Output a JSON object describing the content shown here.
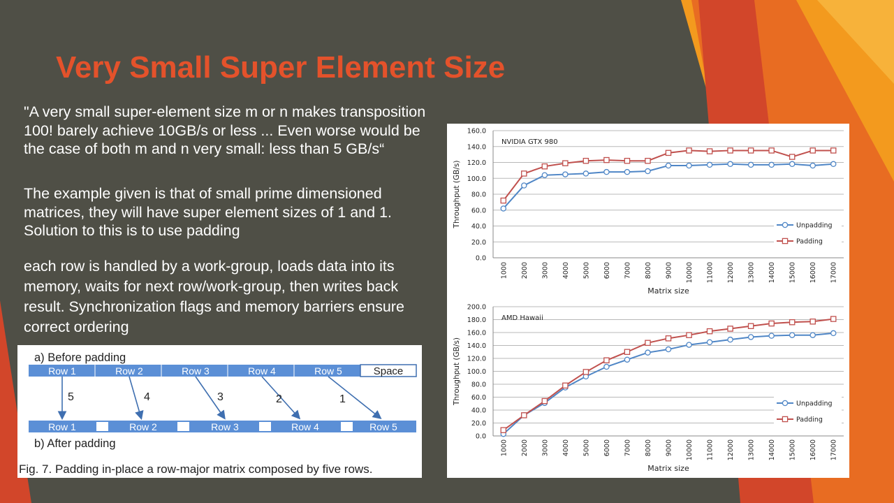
{
  "slide": {
    "title": "Very Small Super Element Size",
    "paragraphs": [
      "\"A very small super-element size m or n makes transposition 100! barely achieve 10GB/s or less ... Even worse would be the case of both m and n very small: less than 5 GB/s“",
      "The example given is that of small prime dimensioned matrices, they will have super element sizes of 1 and 1. Solution to this is to use padding",
      "each row is handled by a work-group, loads data into its memory, waits for next row/work-group, then writes back result. Synchronization flags and memory barriers ensure correct ordering"
    ],
    "colors": {
      "background": "#4f4f46",
      "title": "#e4522b",
      "accent_orange": "#f39a1e",
      "accent_red": "#d2462a"
    }
  },
  "padding_figure": {
    "before_label": "a) Before padding",
    "after_label": "b) After padding",
    "before_rows": [
      "Row 1",
      "Row 2",
      "Row 3",
      "Row 4",
      "Row 5"
    ],
    "space_label": "Space",
    "after_rows": [
      "Row 1",
      "Row 2",
      "Row 3",
      "Row 4",
      "Row 5"
    ],
    "arrow_numbers": [
      "5",
      "4",
      "3",
      "2",
      "1"
    ],
    "caption": "Fig. 7. Padding in-place a row-major matrix composed by five rows.",
    "colors": {
      "row_fill": "#5b8fd6",
      "row_text": "#ffffff",
      "arrow": "#3f6fb0"
    }
  },
  "chart_data": [
    {
      "type": "line",
      "title": "NVIDIA GTX 980",
      "xlabel": "Matrix size",
      "ylabel": "Throughput (GB/s)",
      "categories": [
        "1000",
        "2000",
        "3000",
        "4000",
        "5000",
        "6000",
        "7000",
        "8000",
        "9000",
        "10000",
        "11000",
        "12000",
        "13000",
        "14000",
        "15000",
        "16000",
        "17000"
      ],
      "ylim": [
        0,
        160
      ],
      "yticks": [
        "0.0",
        "20.0",
        "40.0",
        "60.0",
        "80.0",
        "100.0",
        "120.0",
        "140.0",
        "160.0"
      ],
      "grid": true,
      "legend_position": "bottom-right",
      "series": [
        {
          "name": "Unpadding",
          "marker": "circle",
          "color": "#4f86c6",
          "values": [
            62,
            91,
            104,
            105,
            106,
            108,
            108,
            109,
            116,
            116,
            117,
            118,
            117,
            117,
            118,
            116,
            118
          ]
        },
        {
          "name": "Padding",
          "marker": "square",
          "color": "#c0504d",
          "values": [
            72,
            106,
            115,
            119,
            122,
            123,
            122,
            122,
            132,
            135,
            134,
            135,
            135,
            135,
            127,
            135,
            135
          ]
        }
      ]
    },
    {
      "type": "line",
      "title": "AMD Hawaii",
      "xlabel": "Matrix size",
      "ylabel": "Throughput (GB/s)",
      "categories": [
        "1000",
        "2000",
        "3000",
        "4000",
        "5000",
        "6000",
        "7000",
        "8000",
        "9000",
        "10000",
        "11000",
        "12000",
        "13000",
        "14000",
        "15000",
        "16000",
        "17000"
      ],
      "ylim": [
        0,
        200
      ],
      "yticks": [
        "0.0",
        "20.0",
        "40.0",
        "60.0",
        "80.0",
        "100.0",
        "120.0",
        "140.0",
        "160.0",
        "180.0",
        "200.0"
      ],
      "grid": true,
      "legend_position": "bottom-right",
      "series": [
        {
          "name": "Unpadding",
          "marker": "circle",
          "color": "#4f86c6",
          "values": [
            3,
            32,
            51,
            75,
            92,
            107,
            118,
            129,
            134,
            141,
            145,
            149,
            153,
            155,
            156,
            156,
            159
          ]
        },
        {
          "name": "Padding",
          "marker": "square",
          "color": "#c0504d",
          "values": [
            9,
            32,
            54,
            78,
            99,
            117,
            130,
            144,
            151,
            156,
            162,
            166,
            170,
            174,
            176,
            177,
            181
          ]
        }
      ]
    }
  ]
}
